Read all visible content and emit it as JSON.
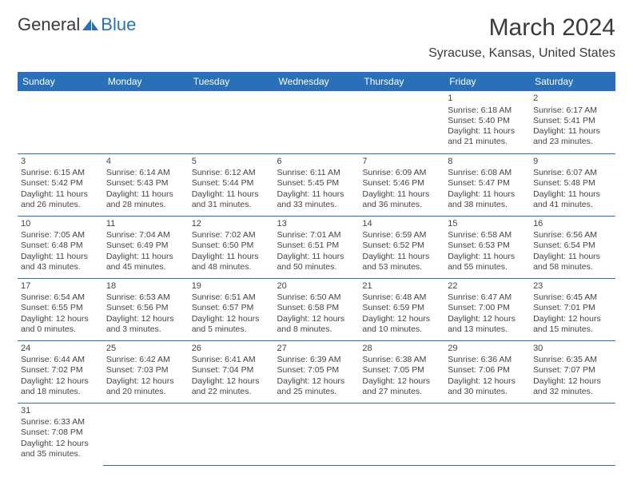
{
  "logo": {
    "text1": "General",
    "text2": "Blue"
  },
  "title": "March 2024",
  "location": "Syracuse, Kansas, United States",
  "colors": {
    "headerBg": "#2a70b8",
    "headerText": "#ffffff",
    "text": "#3a3a3a",
    "border": "#2a70b8"
  },
  "dayHeaders": [
    "Sunday",
    "Monday",
    "Tuesday",
    "Wednesday",
    "Thursday",
    "Friday",
    "Saturday"
  ],
  "weeks": [
    [
      null,
      null,
      null,
      null,
      null,
      {
        "n": "1",
        "rise": "6:18 AM",
        "set": "5:40 PM",
        "dl": "11 hours and 21 minutes."
      },
      {
        "n": "2",
        "rise": "6:17 AM",
        "set": "5:41 PM",
        "dl": "11 hours and 23 minutes."
      }
    ],
    [
      {
        "n": "3",
        "rise": "6:15 AM",
        "set": "5:42 PM",
        "dl": "11 hours and 26 minutes."
      },
      {
        "n": "4",
        "rise": "6:14 AM",
        "set": "5:43 PM",
        "dl": "11 hours and 28 minutes."
      },
      {
        "n": "5",
        "rise": "6:12 AM",
        "set": "5:44 PM",
        "dl": "11 hours and 31 minutes."
      },
      {
        "n": "6",
        "rise": "6:11 AM",
        "set": "5:45 PM",
        "dl": "11 hours and 33 minutes."
      },
      {
        "n": "7",
        "rise": "6:09 AM",
        "set": "5:46 PM",
        "dl": "11 hours and 36 minutes."
      },
      {
        "n": "8",
        "rise": "6:08 AM",
        "set": "5:47 PM",
        "dl": "11 hours and 38 minutes."
      },
      {
        "n": "9",
        "rise": "6:07 AM",
        "set": "5:48 PM",
        "dl": "11 hours and 41 minutes."
      }
    ],
    [
      {
        "n": "10",
        "rise": "7:05 AM",
        "set": "6:48 PM",
        "dl": "11 hours and 43 minutes."
      },
      {
        "n": "11",
        "rise": "7:04 AM",
        "set": "6:49 PM",
        "dl": "11 hours and 45 minutes."
      },
      {
        "n": "12",
        "rise": "7:02 AM",
        "set": "6:50 PM",
        "dl": "11 hours and 48 minutes."
      },
      {
        "n": "13",
        "rise": "7:01 AM",
        "set": "6:51 PM",
        "dl": "11 hours and 50 minutes."
      },
      {
        "n": "14",
        "rise": "6:59 AM",
        "set": "6:52 PM",
        "dl": "11 hours and 53 minutes."
      },
      {
        "n": "15",
        "rise": "6:58 AM",
        "set": "6:53 PM",
        "dl": "11 hours and 55 minutes."
      },
      {
        "n": "16",
        "rise": "6:56 AM",
        "set": "6:54 PM",
        "dl": "11 hours and 58 minutes."
      }
    ],
    [
      {
        "n": "17",
        "rise": "6:54 AM",
        "set": "6:55 PM",
        "dl": "12 hours and 0 minutes."
      },
      {
        "n": "18",
        "rise": "6:53 AM",
        "set": "6:56 PM",
        "dl": "12 hours and 3 minutes."
      },
      {
        "n": "19",
        "rise": "6:51 AM",
        "set": "6:57 PM",
        "dl": "12 hours and 5 minutes."
      },
      {
        "n": "20",
        "rise": "6:50 AM",
        "set": "6:58 PM",
        "dl": "12 hours and 8 minutes."
      },
      {
        "n": "21",
        "rise": "6:48 AM",
        "set": "6:59 PM",
        "dl": "12 hours and 10 minutes."
      },
      {
        "n": "22",
        "rise": "6:47 AM",
        "set": "7:00 PM",
        "dl": "12 hours and 13 minutes."
      },
      {
        "n": "23",
        "rise": "6:45 AM",
        "set": "7:01 PM",
        "dl": "12 hours and 15 minutes."
      }
    ],
    [
      {
        "n": "24",
        "rise": "6:44 AM",
        "set": "7:02 PM",
        "dl": "12 hours and 18 minutes."
      },
      {
        "n": "25",
        "rise": "6:42 AM",
        "set": "7:03 PM",
        "dl": "12 hours and 20 minutes."
      },
      {
        "n": "26",
        "rise": "6:41 AM",
        "set": "7:04 PM",
        "dl": "12 hours and 22 minutes."
      },
      {
        "n": "27",
        "rise": "6:39 AM",
        "set": "7:05 PM",
        "dl": "12 hours and 25 minutes."
      },
      {
        "n": "28",
        "rise": "6:38 AM",
        "set": "7:05 PM",
        "dl": "12 hours and 27 minutes."
      },
      {
        "n": "29",
        "rise": "6:36 AM",
        "set": "7:06 PM",
        "dl": "12 hours and 30 minutes."
      },
      {
        "n": "30",
        "rise": "6:35 AM",
        "set": "7:07 PM",
        "dl": "12 hours and 32 minutes."
      }
    ],
    [
      {
        "n": "31",
        "rise": "6:33 AM",
        "set": "7:08 PM",
        "dl": "12 hours and 35 minutes."
      },
      null,
      null,
      null,
      null,
      null,
      null
    ]
  ]
}
